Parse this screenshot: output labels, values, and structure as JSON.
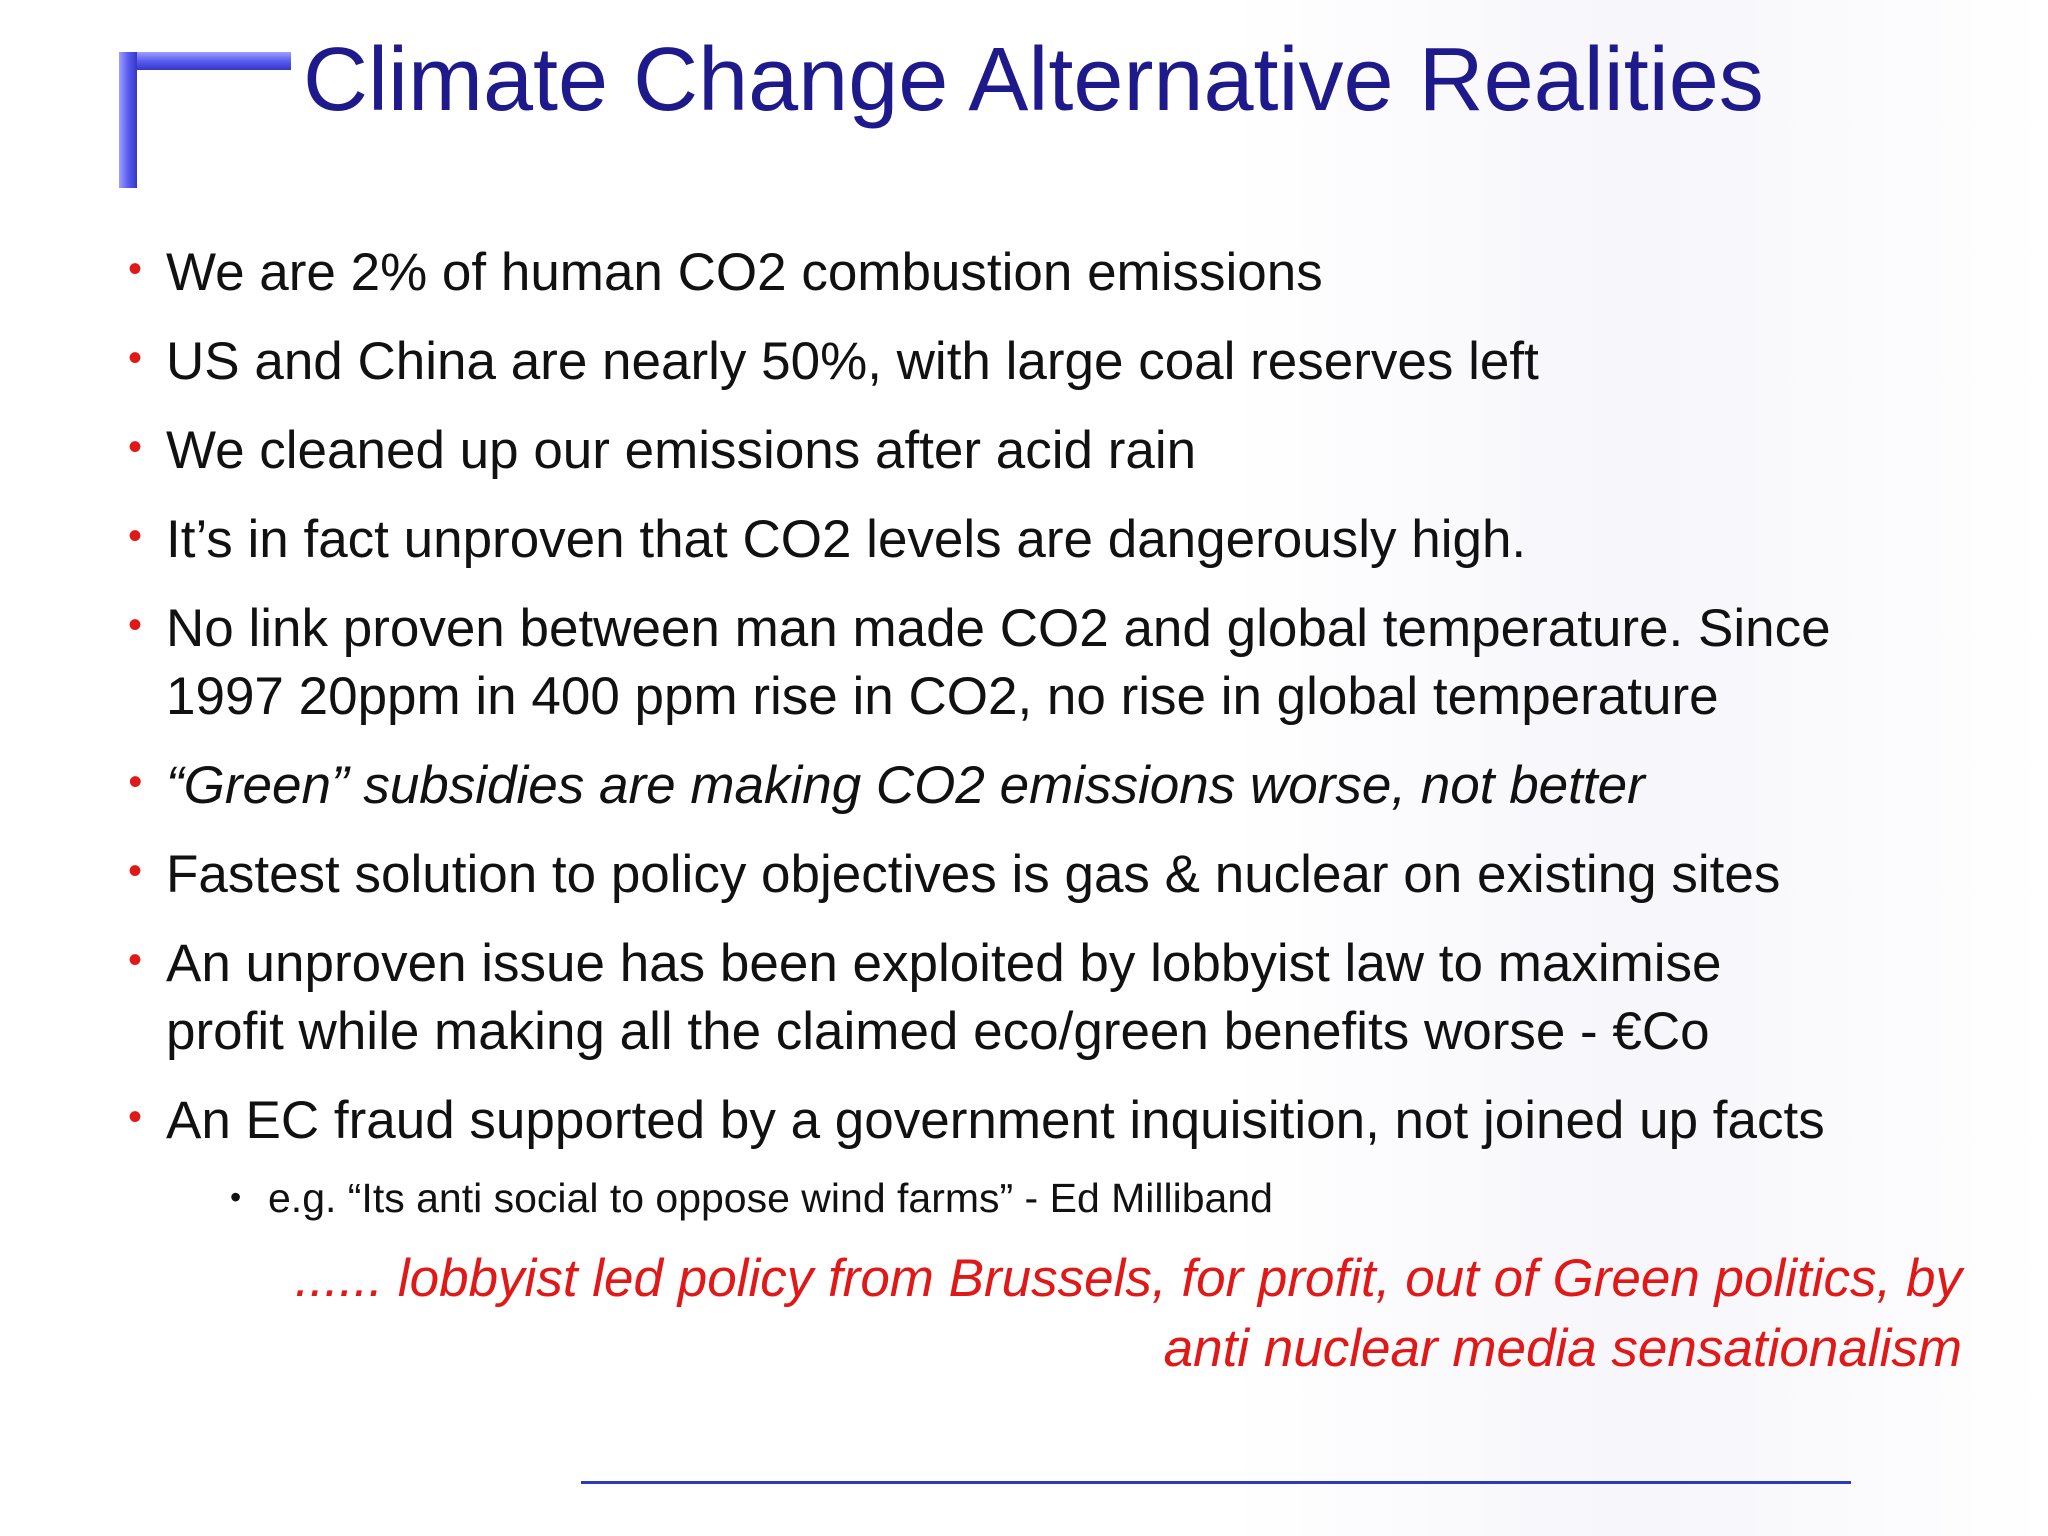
{
  "slide": {
    "title": "Climate Change Alternative Realities",
    "bullets": [
      {
        "text": "We are 2% of human CO2 combustion emissions"
      },
      {
        "text": "US and China are nearly 50%, with large coal reserves left"
      },
      {
        "text": "We cleaned up our emissions after acid rain"
      },
      {
        "text": "It’s in fact unproven that CO2 levels are dangerously high."
      },
      {
        "line1": "No link proven between man made CO2 and global temperature. Since",
        "line2": "1997 20ppm in 400 ppm rise in CO2, no rise in global temperature"
      },
      {
        "text": "“Green” subsidies are making CO2 emissions worse, not better",
        "italic": true
      },
      {
        "text": "Fastest solution to policy objectives is gas & nuclear on existing sites"
      },
      {
        "line1": "An unproven issue has been exploited by lobbyist law to maximise",
        "line2": "profit while making all the claimed eco/green benefits worse - €Co"
      },
      {
        "text": "An EC fraud supported by a government inquisition, not joined up facts"
      }
    ],
    "sub_bullet": "e.g. “Its anti social to oppose wind farms” -  Ed Milliband",
    "conclusion_line1": "...... lobbyist led policy from Brussels, for profit, out of Green politics, by",
    "conclusion_line2": "anti nuclear media sensationalism",
    "bullet_symbol": "•",
    "colors": {
      "title": "#1f1a8c",
      "bullet_marker": "#e01818",
      "body_text": "#111111",
      "conclusion": "#e01818",
      "accent": "#3537c8"
    }
  }
}
